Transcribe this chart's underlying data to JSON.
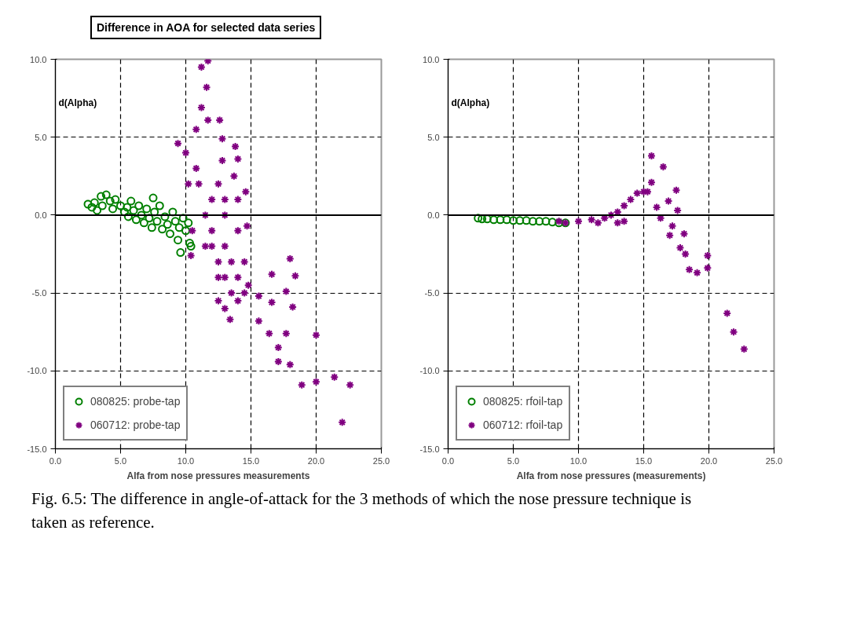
{
  "chart_data": [
    {
      "type": "scatter",
      "title": "Difference in AOA for selected data series",
      "xlabel": "Alfa from nose pressures measurements",
      "ylabel": "d(Alpha)",
      "xlim": [
        0,
        25
      ],
      "ylim": [
        -15,
        10
      ],
      "xticks": [
        {
          "value": 0,
          "label": "0.0"
        },
        {
          "value": 5,
          "label": "5.0"
        },
        {
          "value": 10,
          "label": "10.0"
        },
        {
          "value": 15,
          "label": "15.0"
        },
        {
          "value": 20,
          "label": "20.0"
        },
        {
          "value": 25,
          "label": "25.0"
        }
      ],
      "yticks": [
        {
          "value": -15,
          "label": "-15.0"
        },
        {
          "value": -10,
          "label": "-10.0"
        },
        {
          "value": -5,
          "label": "-5.0"
        },
        {
          "value": 0,
          "label": "0.0"
        },
        {
          "value": 5,
          "label": "5.0"
        },
        {
          "value": 10,
          "label": "10.0"
        }
      ],
      "grid": true,
      "legend": "bottom left",
      "ref_lines": [
        {
          "axis": "y",
          "value": 0,
          "color": "#000000",
          "line_style": "solid"
        }
      ],
      "annotations": [
        "Fig. 6.5: The difference in angle-of-attack for the 3 methods of which the nose pressure technique is taken as reference."
      ],
      "series": [
        {
          "name": "080825: probe-tap",
          "color": "#008000",
          "marker": "circle",
          "x": [
            2.5,
            2.8,
            3.0,
            3.2,
            3.5,
            3.6,
            3.9,
            4.2,
            4.4,
            4.6,
            5.0,
            5.3,
            5.5,
            5.6,
            5.8,
            6.0,
            6.2,
            6.4,
            6.6,
            6.8,
            7.0,
            7.2,
            7.4,
            7.5,
            7.6,
            7.8,
            8.0,
            8.2,
            8.4,
            8.6,
            8.8,
            9.0,
            9.2,
            9.4,
            9.5,
            9.6,
            9.8,
            10.0,
            10.3,
            10.4,
            10.2
          ],
          "values": [
            0.7,
            0.5,
            0.8,
            0.3,
            1.2,
            0.6,
            1.3,
            0.9,
            0.4,
            1.0,
            0.6,
            0.2,
            0.5,
            -0.1,
            0.9,
            0.3,
            -0.3,
            0.6,
            0.0,
            -0.5,
            0.4,
            -0.2,
            -0.8,
            1.1,
            0.2,
            -0.4,
            0.6,
            -0.9,
            -0.1,
            -0.6,
            -1.2,
            0.2,
            -0.4,
            -1.6,
            -0.8,
            -2.4,
            -0.2,
            -1.0,
            -1.8,
            -2.0,
            -0.5
          ]
        },
        {
          "name": "060712: probe-tap",
          "color": "#800080",
          "marker": "cross",
          "x": [
            11.7,
            11.2,
            11.6,
            11.2,
            11.7,
            12.6,
            10.8,
            9.4,
            12.8,
            13.8,
            14.0,
            12.8,
            10.0,
            14.6,
            14.7,
            10.4,
            16.6,
            18.0,
            18.4,
            15.6,
            16.6,
            17.7,
            18.2,
            13.4,
            15.6,
            16.4,
            17.7,
            20.0,
            17.1,
            17.1,
            18.0,
            18.9,
            20.0,
            21.4,
            22.6,
            22.0,
            11.0,
            11.5,
            12.0,
            12.0,
            12.5,
            13.0,
            13.5,
            14.0,
            12.0,
            13.0,
            14.0,
            14.5,
            13.0,
            12.5,
            14.0,
            11.5,
            13.0,
            14.0,
            10.5,
            10.2,
            10.8,
            12.5,
            13.5,
            14.5,
            13.0,
            12.5,
            14.8,
            13.7
          ],
          "values": [
            9.9,
            9.5,
            8.2,
            6.9,
            6.1,
            6.1,
            5.5,
            4.6,
            4.9,
            4.4,
            3.6,
            3.5,
            4.0,
            1.5,
            -0.7,
            -2.6,
            -3.8,
            -2.8,
            -3.9,
            -5.2,
            -5.6,
            -4.9,
            -5.9,
            -6.7,
            -6.8,
            -7.6,
            -7.6,
            -7.7,
            -8.5,
            -9.4,
            -9.6,
            -10.9,
            -10.7,
            -10.4,
            -10.9,
            -13.3,
            2.0,
            0.0,
            -1.0,
            -2.0,
            -3.0,
            -4.0,
            -5.0,
            -5.5,
            1.0,
            0.0,
            -1.0,
            -3.0,
            -2.0,
            -4.0,
            -4.0,
            -2.0,
            1.0,
            1.0,
            -1.0,
            2.0,
            3.0,
            2.0,
            -3.0,
            -5.0,
            -6.0,
            -5.5,
            -4.5,
            2.5
          ]
        }
      ]
    },
    {
      "type": "scatter",
      "xlabel": "Alfa from nose pressures (measurements)",
      "ylabel": "d(Alpha)",
      "xlim": [
        0,
        25
      ],
      "ylim": [
        -15,
        10
      ],
      "xticks": [
        {
          "value": 0,
          "label": "0.0"
        },
        {
          "value": 5,
          "label": "5.0"
        },
        {
          "value": 10,
          "label": "10.0"
        },
        {
          "value": 15,
          "label": "15.0"
        },
        {
          "value": 20,
          "label": "20.0"
        },
        {
          "value": 25,
          "label": "25.0"
        }
      ],
      "yticks": [
        {
          "value": -15,
          "label": "-15.0"
        },
        {
          "value": -10,
          "label": "-10.0"
        },
        {
          "value": -5,
          "label": "-5.0"
        },
        {
          "value": 0,
          "label": "0.0"
        },
        {
          "value": 5,
          "label": "5.0"
        },
        {
          "value": 10,
          "label": "10.0"
        }
      ],
      "grid": true,
      "legend": "bottom left",
      "ref_lines": [
        {
          "axis": "y",
          "value": 0,
          "color": "#000000",
          "line_style": "solid"
        }
      ],
      "series": [
        {
          "name": "080825: rfoil-tap",
          "color": "#008000",
          "marker": "circle",
          "x": [
            2.3,
            2.6,
            3.0,
            3.5,
            4.0,
            4.5,
            5.0,
            5.5,
            6.0,
            6.5,
            7.0,
            7.5,
            8.0,
            8.5,
            9.0
          ],
          "values": [
            -0.2,
            -0.25,
            -0.25,
            -0.3,
            -0.3,
            -0.3,
            -0.35,
            -0.35,
            -0.35,
            -0.4,
            -0.4,
            -0.4,
            -0.45,
            -0.5,
            -0.5
          ]
        },
        {
          "name": "060712: rfoil-tap",
          "color": "#800080",
          "marker": "cross",
          "x": [
            8.5,
            9.0,
            10.0,
            11.0,
            11.5,
            12.0,
            12.5,
            13.0,
            13.0,
            13.5,
            13.5,
            14.0,
            14.5,
            15.0,
            15.3,
            15.6,
            16.5,
            15.6,
            17.5,
            16.0,
            16.9,
            17.6,
            16.3,
            17.2,
            17.0,
            18.1,
            17.8,
            18.2,
            18.5,
            19.1,
            19.9,
            19.9,
            21.4,
            21.9,
            22.7
          ],
          "values": [
            -0.4,
            -0.5,
            -0.4,
            -0.3,
            -0.5,
            -0.2,
            0.0,
            0.2,
            -0.5,
            0.6,
            -0.4,
            1.0,
            1.4,
            1.5,
            1.5,
            3.8,
            3.1,
            2.1,
            1.6,
            0.5,
            0.9,
            0.3,
            -0.2,
            -0.7,
            -1.3,
            -1.2,
            -2.1,
            -2.5,
            -3.5,
            -3.7,
            -2.6,
            -3.4,
            -6.3,
            -7.5,
            -8.6
          ]
        }
      ]
    }
  ]
}
